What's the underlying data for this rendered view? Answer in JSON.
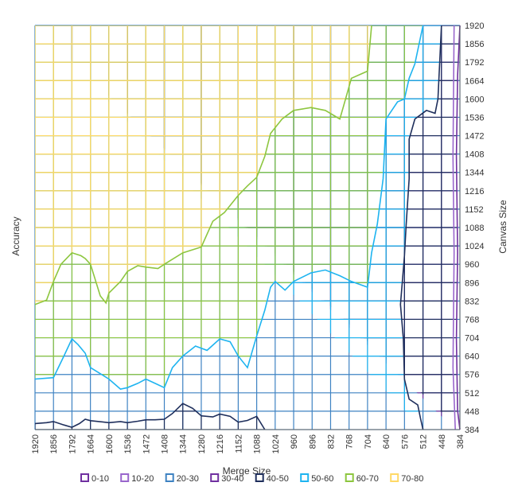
{
  "chart_data": {
    "type": "contour",
    "title": "",
    "xlabel": "Merge Size",
    "ylabel_left": "Accuracy",
    "ylabel_right": "Canvas Size",
    "x_ticks": [
      "1920",
      "1856",
      "1792",
      "1664",
      "1600",
      "1536",
      "1472",
      "1408",
      "1344",
      "1280",
      "1216",
      "1152",
      "1088",
      "1024",
      "960",
      "896",
      "832",
      "768",
      "704",
      "640",
      "576",
      "512",
      "448",
      "384"
    ],
    "y_ticks": [
      "384",
      "448",
      "512",
      "576",
      "640",
      "704",
      "768",
      "832",
      "896",
      "960",
      "1024",
      "1088",
      "1152",
      "1216",
      "1344",
      "1408",
      "1472",
      "1536",
      "1600",
      "1664",
      "1792",
      "1856",
      "1920"
    ],
    "grid": true,
    "legend_position": "bottom",
    "legend": [
      {
        "label": "0-10",
        "color": "#7030A0"
      },
      {
        "label": "10-20",
        "color": "#9966CC"
      },
      {
        "label": "20-30",
        "color": "#3E82C2"
      },
      {
        "label": "30-40",
        "color": "#7030A0"
      },
      {
        "label": "40-50",
        "color": "#1F2F5C"
      },
      {
        "label": "50-60",
        "color": "#1EB4F0"
      },
      {
        "label": "60-70",
        "color": "#8DC63F"
      },
      {
        "label": "70-80",
        "color": "#FFD966"
      }
    ],
    "band_boundaries": [
      {
        "band": "70-80",
        "line_color": "#8DC63F",
        "points": [
          [
            1920,
            820
          ],
          [
            1880,
            835
          ],
          [
            1856,
            900
          ],
          [
            1830,
            960
          ],
          [
            1792,
            1000
          ],
          [
            1730,
            990
          ],
          [
            1700,
            980
          ],
          [
            1664,
            960
          ],
          [
            1630,
            850
          ],
          [
            1610,
            825
          ],
          [
            1600,
            860
          ],
          [
            1560,
            900
          ],
          [
            1536,
            935
          ],
          [
            1500,
            955
          ],
          [
            1470,
            950
          ],
          [
            1430,
            945
          ],
          [
            1408,
            960
          ],
          [
            1344,
            1000
          ],
          [
            1280,
            1020
          ],
          [
            1240,
            1110
          ],
          [
            1200,
            1140
          ],
          [
            1152,
            1200
          ],
          [
            1120,
            1250
          ],
          [
            1088,
            1310
          ],
          [
            1060,
            1400
          ],
          [
            1040,
            1480
          ],
          [
            1000,
            1530
          ],
          [
            960,
            1560
          ],
          [
            900,
            1570
          ],
          [
            850,
            1560
          ],
          [
            800,
            1530
          ],
          [
            780,
            1600
          ],
          [
            760,
            1680
          ],
          [
            704,
            1730
          ],
          [
            690,
            1920
          ]
        ]
      },
      {
        "band": "60-70",
        "line_color": "#1EB4F0",
        "points": [
          [
            1920,
            560
          ],
          [
            1856,
            565
          ],
          [
            1820,
            640
          ],
          [
            1792,
            700
          ],
          [
            1750,
            680
          ],
          [
            1700,
            650
          ],
          [
            1664,
            600
          ],
          [
            1600,
            560
          ],
          [
            1560,
            525
          ],
          [
            1536,
            530
          ],
          [
            1500,
            545
          ],
          [
            1472,
            560
          ],
          [
            1440,
            545
          ],
          [
            1408,
            530
          ],
          [
            1380,
            600
          ],
          [
            1344,
            640
          ],
          [
            1300,
            675
          ],
          [
            1260,
            660
          ],
          [
            1216,
            700
          ],
          [
            1180,
            690
          ],
          [
            1152,
            640
          ],
          [
            1120,
            600
          ],
          [
            1088,
            710
          ],
          [
            1060,
            800
          ],
          [
            1040,
            880
          ],
          [
            1024,
            900
          ],
          [
            990,
            870
          ],
          [
            960,
            900
          ],
          [
            900,
            930
          ],
          [
            850,
            940
          ],
          [
            800,
            920
          ],
          [
            760,
            900
          ],
          [
            704,
            880
          ],
          [
            690,
            1000
          ],
          [
            670,
            1100
          ],
          [
            650,
            1300
          ],
          [
            640,
            1530
          ],
          [
            600,
            1590
          ],
          [
            576,
            1600
          ],
          [
            560,
            1680
          ],
          [
            540,
            1780
          ],
          [
            512,
            1920
          ]
        ]
      },
      {
        "band": "50-60",
        "line_color": "#1F2F5C",
        "points": [
          [
            1920,
            405
          ],
          [
            1880,
            408
          ],
          [
            1856,
            412
          ],
          [
            1820,
            400
          ],
          [
            1792,
            392
          ],
          [
            1740,
            405
          ],
          [
            1700,
            420
          ],
          [
            1664,
            415
          ],
          [
            1600,
            408
          ],
          [
            1560,
            412
          ],
          [
            1536,
            408
          ],
          [
            1500,
            413
          ],
          [
            1472,
            418
          ],
          [
            1440,
            418
          ],
          [
            1408,
            420
          ],
          [
            1380,
            440
          ],
          [
            1344,
            475
          ],
          [
            1310,
            458
          ],
          [
            1280,
            432
          ],
          [
            1240,
            428
          ],
          [
            1216,
            438
          ],
          [
            1180,
            430
          ],
          [
            1152,
            410
          ],
          [
            1120,
            416
          ],
          [
            1088,
            430
          ],
          [
            1060,
            384
          ]
        ]
      },
      {
        "band": "40-50",
        "line_color": "#1F2F5C",
        "points": [
          [
            512,
            384
          ],
          [
            520,
            420
          ],
          [
            530,
            470
          ],
          [
            560,
            490
          ],
          [
            576,
            560
          ],
          [
            580,
            700
          ],
          [
            590,
            820
          ],
          [
            576,
            990
          ],
          [
            570,
            1100
          ],
          [
            560,
            1300
          ],
          [
            560,
            1460
          ],
          [
            540,
            1530
          ],
          [
            500,
            1560
          ],
          [
            470,
            1550
          ],
          [
            460,
            1600
          ],
          [
            448,
            1920
          ]
        ]
      },
      {
        "band": "30-40",
        "line_color": "#7030A0",
        "points": [
          [
            384,
            384
          ],
          [
            392,
            450
          ],
          [
            396,
            700
          ],
          [
            392,
            1000
          ],
          [
            396,
            1400
          ],
          [
            392,
            1700
          ],
          [
            384,
            1920
          ]
        ]
      },
      {
        "band": "20-30",
        "line_color": "#9966CC",
        "points": [
          [
            400,
            384
          ],
          [
            408,
            600
          ],
          [
            404,
            1000
          ],
          [
            408,
            1400
          ],
          [
            404,
            1920
          ]
        ]
      }
    ]
  }
}
